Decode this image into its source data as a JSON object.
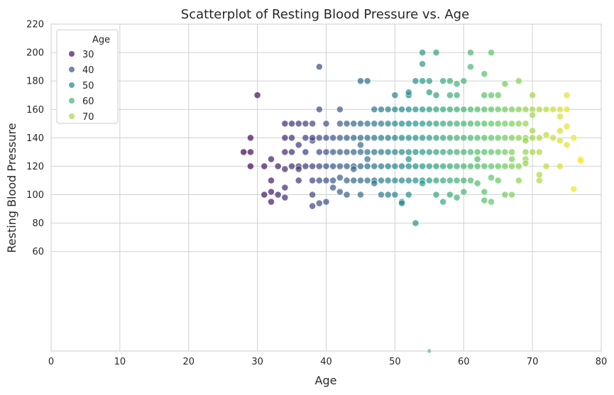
{
  "chart_data": {
    "type": "scatter",
    "title": "Scatterplot of Resting Blood Pressure vs. Age",
    "xlabel": "Age",
    "ylabel": "Resting Blood Pressure",
    "xlim": [
      0,
      80
    ],
    "ylim": [
      -10,
      220
    ],
    "x_ticks": [
      0,
      10,
      20,
      30,
      40,
      50,
      60,
      70,
      80
    ],
    "y_ticks": [
      60,
      80,
      100,
      120,
      140,
      160,
      180,
      200,
      220
    ],
    "grid": true,
    "colormap": "viridis",
    "hue": "Age",
    "hue_range": [
      28,
      77
    ],
    "legend": {
      "title": "Age",
      "placement": "top-left",
      "entries": [
        {
          "label": "30",
          "value": 30
        },
        {
          "label": "40",
          "value": 40
        },
        {
          "label": "50",
          "value": 50
        },
        {
          "label": "60",
          "value": 60
        },
        {
          "label": "70",
          "value": 70
        }
      ]
    },
    "points": [
      [
        28,
        130
      ],
      [
        29,
        130
      ],
      [
        29,
        140
      ],
      [
        29,
        120
      ],
      [
        30,
        170
      ],
      [
        31,
        120
      ],
      [
        31,
        100
      ],
      [
        32,
        125
      ],
      [
        32,
        110
      ],
      [
        32,
        95
      ],
      [
        32,
        102
      ],
      [
        33,
        120
      ],
      [
        33,
        100
      ],
      [
        34,
        118
      ],
      [
        34,
        130
      ],
      [
        34,
        140
      ],
      [
        34,
        150
      ],
      [
        34,
        105
      ],
      [
        34,
        98
      ],
      [
        35,
        120
      ],
      [
        35,
        140
      ],
      [
        35,
        150
      ],
      [
        35,
        130
      ],
      [
        36,
        120
      ],
      [
        36,
        110
      ],
      [
        36,
        150
      ],
      [
        36,
        135
      ],
      [
        36,
        118
      ],
      [
        37,
        130
      ],
      [
        37,
        120
      ],
      [
        37,
        140
      ],
      [
        37,
        150
      ],
      [
        38,
        120
      ],
      [
        38,
        138
      ],
      [
        38,
        140
      ],
      [
        38,
        110
      ],
      [
        38,
        100
      ],
      [
        38,
        92
      ],
      [
        38,
        150
      ],
      [
        39,
        120
      ],
      [
        39,
        130
      ],
      [
        39,
        110
      ],
      [
        39,
        140
      ],
      [
        39,
        160
      ],
      [
        39,
        190
      ],
      [
        39,
        94
      ],
      [
        40,
        120
      ],
      [
        40,
        130
      ],
      [
        40,
        140
      ],
      [
        40,
        110
      ],
      [
        40,
        150
      ],
      [
        40,
        95
      ],
      [
        41,
        120
      ],
      [
        41,
        130
      ],
      [
        41,
        110
      ],
      [
        41,
        140
      ],
      [
        41,
        105
      ],
      [
        42,
        120
      ],
      [
        42,
        130
      ],
      [
        42,
        140
      ],
      [
        42,
        150
      ],
      [
        42,
        102
      ],
      [
        42,
        112
      ],
      [
        42,
        160
      ],
      [
        43,
        120
      ],
      [
        43,
        130
      ],
      [
        43,
        140
      ],
      [
        43,
        150
      ],
      [
        43,
        110
      ],
      [
        43,
        100
      ],
      [
        44,
        120
      ],
      [
        44,
        130
      ],
      [
        44,
        140
      ],
      [
        44,
        110
      ],
      [
        44,
        118
      ],
      [
        44,
        150
      ],
      [
        45,
        120
      ],
      [
        45,
        130
      ],
      [
        45,
        140
      ],
      [
        45,
        110
      ],
      [
        45,
        150
      ],
      [
        45,
        180
      ],
      [
        45,
        100
      ],
      [
        45,
        135
      ],
      [
        46,
        120
      ],
      [
        46,
        130
      ],
      [
        46,
        140
      ],
      [
        46,
        110
      ],
      [
        46,
        150
      ],
      [
        46,
        180
      ],
      [
        46,
        125
      ],
      [
        47,
        120
      ],
      [
        47,
        130
      ],
      [
        47,
        140
      ],
      [
        47,
        110
      ],
      [
        47,
        150
      ],
      [
        47,
        160
      ],
      [
        47,
        108
      ],
      [
        48,
        120
      ],
      [
        48,
        130
      ],
      [
        48,
        140
      ],
      [
        48,
        110
      ],
      [
        48,
        150
      ],
      [
        48,
        160
      ],
      [
        48,
        100
      ],
      [
        49,
        120
      ],
      [
        49,
        130
      ],
      [
        49,
        140
      ],
      [
        49,
        110
      ],
      [
        49,
        150
      ],
      [
        49,
        160
      ],
      [
        49,
        100
      ],
      [
        50,
        120
      ],
      [
        50,
        130
      ],
      [
        50,
        140
      ],
      [
        50,
        110
      ],
      [
        50,
        150
      ],
      [
        50,
        160
      ],
      [
        50,
        100
      ],
      [
        50,
        170
      ],
      [
        51,
        120
      ],
      [
        51,
        130
      ],
      [
        51,
        140
      ],
      [
        51,
        110
      ],
      [
        51,
        150
      ],
      [
        51,
        160
      ],
      [
        51,
        95
      ],
      [
        51,
        94
      ],
      [
        52,
        120
      ],
      [
        52,
        130
      ],
      [
        52,
        140
      ],
      [
        52,
        110
      ],
      [
        52,
        150
      ],
      [
        52,
        160
      ],
      [
        52,
        170
      ],
      [
        52,
        172
      ],
      [
        52,
        100
      ],
      [
        52,
        125
      ],
      [
        53,
        120
      ],
      [
        53,
        130
      ],
      [
        53,
        140
      ],
      [
        53,
        110
      ],
      [
        53,
        150
      ],
      [
        53,
        160
      ],
      [
        53,
        80
      ],
      [
        53,
        180
      ],
      [
        54,
        120
      ],
      [
        54,
        130
      ],
      [
        54,
        140
      ],
      [
        54,
        110
      ],
      [
        54,
        150
      ],
      [
        54,
        160
      ],
      [
        54,
        180
      ],
      [
        54,
        192
      ],
      [
        54,
        200
      ],
      [
        54,
        108
      ],
      [
        55,
        120
      ],
      [
        55,
        130
      ],
      [
        55,
        140
      ],
      [
        55,
        110
      ],
      [
        55,
        150
      ],
      [
        55,
        160
      ],
      [
        55,
        180
      ],
      [
        55,
        172
      ],
      [
        55,
        -10
      ],
      [
        56,
        120
      ],
      [
        56,
        130
      ],
      [
        56,
        140
      ],
      [
        56,
        110
      ],
      [
        56,
        150
      ],
      [
        56,
        160
      ],
      [
        56,
        200
      ],
      [
        56,
        170
      ],
      [
        56,
        100
      ],
      [
        57,
        120
      ],
      [
        57,
        130
      ],
      [
        57,
        140
      ],
      [
        57,
        110
      ],
      [
        57,
        150
      ],
      [
        57,
        160
      ],
      [
        57,
        180
      ],
      [
        57,
        95
      ],
      [
        58,
        120
      ],
      [
        58,
        130
      ],
      [
        58,
        140
      ],
      [
        58,
        110
      ],
      [
        58,
        150
      ],
      [
        58,
        160
      ],
      [
        58,
        180
      ],
      [
        58,
        170
      ],
      [
        58,
        100
      ],
      [
        59,
        120
      ],
      [
        59,
        130
      ],
      [
        59,
        140
      ],
      [
        59,
        110
      ],
      [
        59,
        150
      ],
      [
        59,
        160
      ],
      [
        59,
        170
      ],
      [
        59,
        178
      ],
      [
        59,
        98
      ],
      [
        60,
        120
      ],
      [
        60,
        130
      ],
      [
        60,
        140
      ],
      [
        60,
        110
      ],
      [
        60,
        150
      ],
      [
        60,
        160
      ],
      [
        60,
        102
      ],
      [
        60,
        180
      ],
      [
        61,
        120
      ],
      [
        61,
        130
      ],
      [
        61,
        140
      ],
      [
        61,
        150
      ],
      [
        61,
        160
      ],
      [
        61,
        200
      ],
      [
        61,
        190
      ],
      [
        61,
        110
      ],
      [
        62,
        120
      ],
      [
        62,
        130
      ],
      [
        62,
        140
      ],
      [
        62,
        150
      ],
      [
        62,
        160
      ],
      [
        62,
        125
      ],
      [
        62,
        108
      ],
      [
        63,
        120
      ],
      [
        63,
        130
      ],
      [
        63,
        140
      ],
      [
        63,
        150
      ],
      [
        63,
        160
      ],
      [
        63,
        185
      ],
      [
        63,
        170
      ],
      [
        63,
        96
      ],
      [
        63,
        102
      ],
      [
        64,
        120
      ],
      [
        64,
        130
      ],
      [
        64,
        140
      ],
      [
        64,
        150
      ],
      [
        64,
        160
      ],
      [
        64,
        200
      ],
      [
        64,
        170
      ],
      [
        64,
        112
      ],
      [
        64,
        95
      ],
      [
        65,
        120
      ],
      [
        65,
        130
      ],
      [
        65,
        140
      ],
      [
        65,
        150
      ],
      [
        65,
        160
      ],
      [
        65,
        170
      ],
      [
        65,
        110
      ],
      [
        66,
        120
      ],
      [
        66,
        130
      ],
      [
        66,
        140
      ],
      [
        66,
        150
      ],
      [
        66,
        160
      ],
      [
        66,
        178
      ],
      [
        66,
        100
      ],
      [
        67,
        120
      ],
      [
        67,
        130
      ],
      [
        67,
        140
      ],
      [
        67,
        150
      ],
      [
        67,
        160
      ],
      [
        67,
        125
      ],
      [
        67,
        100
      ],
      [
        68,
        140
      ],
      [
        68,
        150
      ],
      [
        68,
        160
      ],
      [
        68,
        180
      ],
      [
        68,
        120
      ],
      [
        68,
        110
      ],
      [
        69,
        130
      ],
      [
        69,
        140
      ],
      [
        69,
        150
      ],
      [
        69,
        160
      ],
      [
        69,
        138
      ],
      [
        69,
        125
      ],
      [
        69,
        122
      ],
      [
        70,
        130
      ],
      [
        70,
        140
      ],
      [
        70,
        145
      ],
      [
        70,
        160
      ],
      [
        70,
        170
      ],
      [
        70,
        156
      ],
      [
        71,
        130
      ],
      [
        71,
        140
      ],
      [
        71,
        160
      ],
      [
        71,
        110
      ],
      [
        71,
        114
      ],
      [
        72,
        160
      ],
      [
        72,
        120
      ],
      [
        72,
        142
      ],
      [
        73,
        160
      ],
      [
        73,
        140
      ],
      [
        74,
        145
      ],
      [
        74,
        160
      ],
      [
        74,
        155
      ],
      [
        74,
        138
      ],
      [
        74,
        120
      ],
      [
        75,
        170
      ],
      [
        75,
        160
      ],
      [
        75,
        135
      ],
      [
        75,
        148
      ],
      [
        76,
        140
      ],
      [
        76,
        104
      ],
      [
        77,
        125
      ],
      [
        77,
        124
      ]
    ]
  }
}
